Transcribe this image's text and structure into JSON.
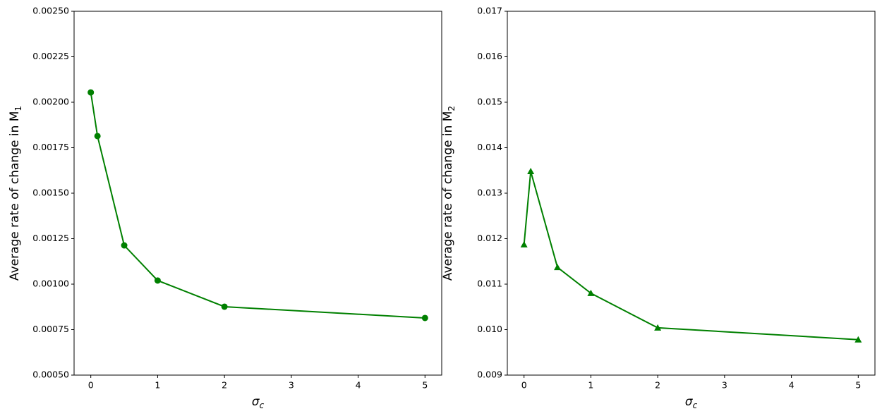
{
  "chart_data": [
    {
      "type": "line",
      "marker": "circle",
      "xlabel": {
        "text": "σ",
        "sub": "c"
      },
      "ylabel": {
        "text": "Average rate of change in M",
        "sub": "1"
      },
      "x": [
        0,
        0.1,
        0.5,
        1,
        2,
        5
      ],
      "series": [
        {
          "color": "#008000",
          "values": [
            0.002054,
            0.001814,
            0.001213,
            0.00102,
            0.000876,
            0.000814
          ]
        }
      ],
      "xlim": [
        -0.25,
        5.25
      ],
      "xticks": [
        0,
        1,
        2,
        3,
        4,
        5
      ],
      "ylim": [
        0.0005,
        0.0025
      ],
      "yticks": [
        {
          "value": 0.0005,
          "label": "0.00050"
        },
        0.00075,
        {
          "value": 0.001,
          "label": "0.00100"
        },
        0.00125,
        {
          "value": 0.0015,
          "label": "0.00150"
        },
        0.00175,
        {
          "value": 0.002,
          "label": "0.00200"
        },
        0.00225,
        {
          "value": 0.0025,
          "label": "0.00250"
        }
      ]
    },
    {
      "type": "line",
      "marker": "triangle",
      "xlabel": {
        "text": "σ",
        "sub": "c"
      },
      "ylabel": {
        "text": "Average rate of change in M",
        "sub": "2"
      },
      "x": [
        0,
        0.1,
        0.5,
        1,
        2,
        5
      ],
      "series": [
        {
          "color": "#008000",
          "values": [
            0.01187,
            0.01348,
            0.01137,
            0.0108,
            0.01004,
            0.00978
          ]
        }
      ],
      "xlim": [
        -0.25,
        5.25
      ],
      "xticks": [
        0,
        1,
        2,
        3,
        4,
        5
      ],
      "ylim": [
        0.009,
        0.017
      ],
      "yticks": [
        0.009,
        {
          "value": 0.01,
          "label": "0.010"
        },
        0.011,
        0.012,
        0.013,
        0.014,
        0.015,
        0.016,
        0.017
      ]
    }
  ]
}
